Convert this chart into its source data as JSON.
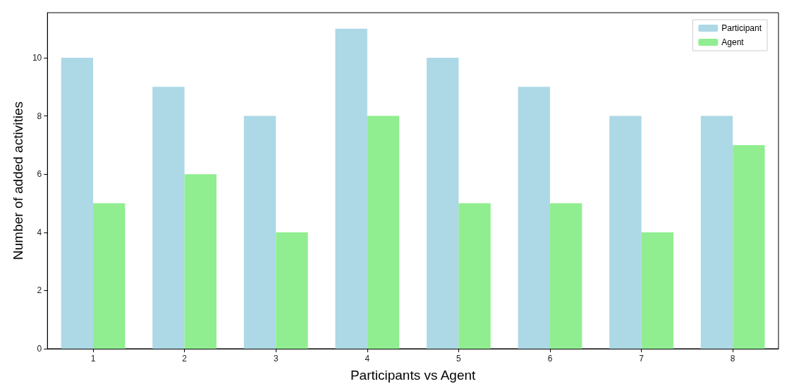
{
  "chart_data": {
    "type": "bar",
    "xlabel": "Participants vs Agent",
    "ylabel": "Number of added activities",
    "categories": [
      "1",
      "2",
      "3",
      "4",
      "5",
      "6",
      "7",
      "8"
    ],
    "series": [
      {
        "name": "Participant",
        "color": "#add8e6",
        "values": [
          10,
          9,
          8,
          11,
          10,
          9,
          8,
          8
        ]
      },
      {
        "name": "Agent",
        "color": "#90ee90",
        "values": [
          5,
          6,
          4,
          8,
          5,
          5,
          4,
          7
        ]
      }
    ],
    "ylim": [
      0,
      11.55
    ],
    "yticks": [
      0,
      2,
      4,
      6,
      8,
      10
    ],
    "grid": false,
    "legend": "top right"
  }
}
